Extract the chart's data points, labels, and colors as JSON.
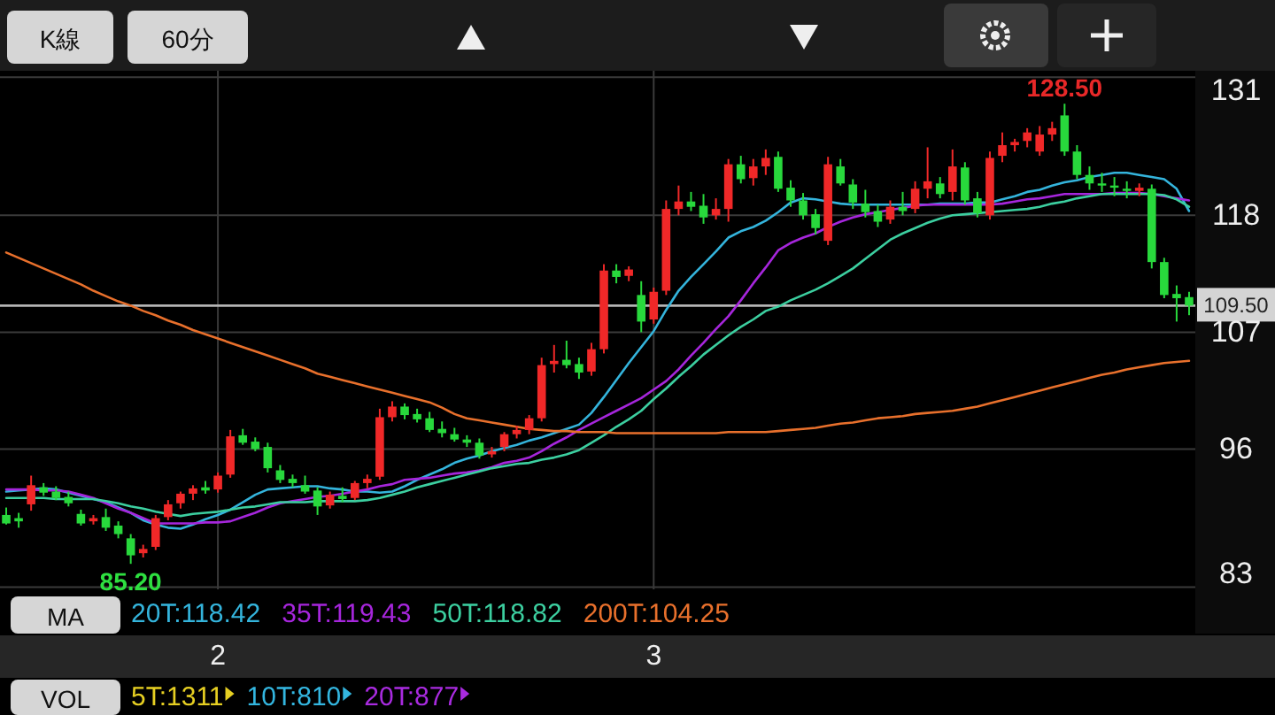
{
  "chart_data": {
    "type": "candlestick",
    "categories": [
      null,
      null,
      null,
      null,
      null,
      null,
      null,
      null,
      null,
      null,
      null,
      null,
      null,
      null,
      null,
      null,
      null,
      "2",
      null,
      null,
      null,
      null,
      null,
      null,
      null,
      null,
      null,
      null,
      null,
      null,
      null,
      null,
      null,
      null,
      null,
      null,
      null,
      null,
      null,
      null,
      null,
      null,
      null,
      null,
      null,
      null,
      null,
      null,
      null,
      null,
      null,
      null,
      "3",
      null,
      null,
      null,
      null,
      null,
      null,
      null,
      null,
      null,
      null,
      null,
      null,
      null,
      null,
      null,
      null,
      null,
      null,
      null,
      null,
      null,
      null,
      null,
      null,
      null,
      null,
      null,
      null,
      null,
      null,
      null,
      null,
      null,
      null,
      null,
      null,
      null,
      null,
      null,
      null,
      null,
      null,
      null
    ],
    "ohlc": [
      [
        89.8,
        90.5,
        88.9,
        89.0
      ],
      [
        89.5,
        90.0,
        88.6,
        89.2
      ],
      [
        90.8,
        93.5,
        90.2,
        92.6
      ],
      [
        92.4,
        92.8,
        91.6,
        91.9
      ],
      [
        92.0,
        92.5,
        91.2,
        91.4
      ],
      [
        91.5,
        92.0,
        90.6,
        90.9
      ],
      [
        89.9,
        90.3,
        88.8,
        89.0
      ],
      [
        89.2,
        89.8,
        88.9,
        89.5
      ],
      [
        89.6,
        90.4,
        88.3,
        88.6
      ],
      [
        88.8,
        89.2,
        87.6,
        88.0
      ],
      [
        87.6,
        88.0,
        85.2,
        86.0
      ],
      [
        86.2,
        87.0,
        85.8,
        86.6
      ],
      [
        86.8,
        89.8,
        86.5,
        89.5
      ],
      [
        89.6,
        91.2,
        89.3,
        90.8
      ],
      [
        90.9,
        92.0,
        90.4,
        91.8
      ],
      [
        91.8,
        92.6,
        91.2,
        92.3
      ],
      [
        92.4,
        93.0,
        91.8,
        92.1
      ],
      [
        92.2,
        93.8,
        91.9,
        93.5
      ],
      [
        93.6,
        97.8,
        93.3,
        97.2
      ],
      [
        97.3,
        97.9,
        96.4,
        96.6
      ],
      [
        96.7,
        97.1,
        95.8,
        96.0
      ],
      [
        96.2,
        96.6,
        93.8,
        94.2
      ],
      [
        94.0,
        94.5,
        92.8,
        93.1
      ],
      [
        93.2,
        93.6,
        92.4,
        92.8
      ],
      [
        92.6,
        93.5,
        91.8,
        92.0
      ],
      [
        92.1,
        92.4,
        89.8,
        90.6
      ],
      [
        90.7,
        92.0,
        90.4,
        91.7
      ],
      [
        91.6,
        92.4,
        91.0,
        91.3
      ],
      [
        91.4,
        93.0,
        91.2,
        92.8
      ],
      [
        92.8,
        93.6,
        92.3,
        93.2
      ],
      [
        93.4,
        99.8,
        93.1,
        99.0
      ],
      [
        99.0,
        100.5,
        98.6,
        100.0
      ],
      [
        100.0,
        100.3,
        98.8,
        99.2
      ],
      [
        99.3,
        99.8,
        98.5,
        98.8
      ],
      [
        98.9,
        99.5,
        97.6,
        97.8
      ],
      [
        97.9,
        98.6,
        97.1,
        97.5
      ],
      [
        97.4,
        98.0,
        96.7,
        96.9
      ],
      [
        96.9,
        97.3,
        96.2,
        96.6
      ],
      [
        96.6,
        97.0,
        95.1,
        95.4
      ],
      [
        95.5,
        96.2,
        95.2,
        95.8
      ],
      [
        96.2,
        97.6,
        95.8,
        97.4
      ],
      [
        97.4,
        98.2,
        97.0,
        97.8
      ],
      [
        97.8,
        99.2,
        97.4,
        98.9
      ],
      [
        98.9,
        104.6,
        98.6,
        103.9
      ],
      [
        104.0,
        105.8,
        103.2,
        104.3
      ],
      [
        104.4,
        106.2,
        103.6,
        103.9
      ],
      [
        104.0,
        104.6,
        102.6,
        103.2
      ],
      [
        103.3,
        106.0,
        102.9,
        105.4
      ],
      [
        105.4,
        113.4,
        105.0,
        112.8
      ],
      [
        112.8,
        113.4,
        111.6,
        112.2
      ],
      [
        112.3,
        113.2,
        111.8,
        112.9
      ],
      [
        110.5,
        111.8,
        107.0,
        108.0
      ],
      [
        108.2,
        111.2,
        107.8,
        110.8
      ],
      [
        110.9,
        119.4,
        110.5,
        118.6
      ],
      [
        118.6,
        120.8,
        118.0,
        119.3
      ],
      [
        119.3,
        120.2,
        118.4,
        118.8
      ],
      [
        118.9,
        120.0,
        117.2,
        117.8
      ],
      [
        118.0,
        119.6,
        117.6,
        118.6
      ],
      [
        118.6,
        123.3,
        117.4,
        122.8
      ],
      [
        122.8,
        123.6,
        121.0,
        121.4
      ],
      [
        121.5,
        123.3,
        120.8,
        122.6
      ],
      [
        122.6,
        124.2,
        121.8,
        123.4
      ],
      [
        123.5,
        124.0,
        120.2,
        120.5
      ],
      [
        120.6,
        121.3,
        118.8,
        119.4
      ],
      [
        119.4,
        120.1,
        117.6,
        118.0
      ],
      [
        118.1,
        118.6,
        116.2,
        116.8
      ],
      [
        115.6,
        123.5,
        115.2,
        122.8
      ],
      [
        122.6,
        123.3,
        120.8,
        121.0
      ],
      [
        120.9,
        121.4,
        118.6,
        119.2
      ],
      [
        119.1,
        120.4,
        117.8,
        118.3
      ],
      [
        118.4,
        119.0,
        116.9,
        117.4
      ],
      [
        117.6,
        119.4,
        117.2,
        118.8
      ],
      [
        118.8,
        120.2,
        118.0,
        118.4
      ],
      [
        118.6,
        121.2,
        118.2,
        120.5
      ],
      [
        120.5,
        124.4,
        119.6,
        121.2
      ],
      [
        121.0,
        121.6,
        119.6,
        120.0
      ],
      [
        120.2,
        124.2,
        119.4,
        122.6
      ],
      [
        122.5,
        123.0,
        119.0,
        119.4
      ],
      [
        119.6,
        120.2,
        117.8,
        118.2
      ],
      [
        118.0,
        124.0,
        117.6,
        123.4
      ],
      [
        123.6,
        125.8,
        123.0,
        124.6
      ],
      [
        124.6,
        125.2,
        124.0,
        124.9
      ],
      [
        125.0,
        126.2,
        124.4,
        125.8
      ],
      [
        124.0,
        126.4,
        123.6,
        125.6
      ],
      [
        125.6,
        126.8,
        125.0,
        126.2
      ],
      [
        127.4,
        128.5,
        123.6,
        124.0
      ],
      [
        124.0,
        124.6,
        121.4,
        121.8
      ],
      [
        121.8,
        122.6,
        120.4,
        121.0
      ],
      [
        121.0,
        122.0,
        120.2,
        120.8
      ],
      [
        120.8,
        121.6,
        119.8,
        120.6
      ],
      [
        120.5,
        121.2,
        119.6,
        120.3
      ],
      [
        120.3,
        121.0,
        119.8,
        120.6
      ],
      [
        120.5,
        120.9,
        113.0,
        113.6
      ],
      [
        113.6,
        114.0,
        110.2,
        110.5
      ],
      [
        110.6,
        111.4,
        108.0,
        110.2
      ],
      [
        110.3,
        110.8,
        108.6,
        109.5
      ]
    ],
    "colors": [
      "#28d83c",
      "#28d83c",
      "#f02828",
      "#28d83c",
      "#28d83c",
      "#28d83c",
      "#28d83c",
      "#f02828",
      "#28d83c",
      "#28d83c",
      "#28d83c",
      "#f02828",
      "#f02828",
      "#f02828",
      "#f02828",
      "#f02828",
      "#28d83c",
      "#f02828",
      "#f02828",
      "#28d83c",
      "#28d83c",
      "#28d83c",
      "#28d83c",
      "#28d83c",
      "#28d83c",
      "#28d83c",
      "#f02828",
      "#28d83c",
      "#f02828",
      "#f02828",
      "#f02828",
      "#f02828",
      "#28d83c",
      "#28d83c",
      "#28d83c",
      "#28d83c",
      "#28d83c",
      "#28d83c",
      "#28d83c",
      "#f02828",
      "#f02828",
      "#f02828",
      "#f02828",
      "#f02828",
      "#f02828",
      "#28d83c",
      "#28d83c",
      "#f02828",
      "#f02828",
      "#28d83c",
      "#f02828",
      "#28d83c",
      "#f02828",
      "#f02828",
      "#f02828",
      "#28d83c",
      "#28d83c",
      "#f02828",
      "#f02828",
      "#28d83c",
      "#f02828",
      "#f02828",
      "#28d83c",
      "#28d83c",
      "#28d83c",
      "#28d83c",
      "#f02828",
      "#28d83c",
      "#28d83c",
      "#28d83c",
      "#28d83c",
      "#f02828",
      "#28d83c",
      "#f02828",
      "#f02828",
      "#28d83c",
      "#f02828",
      "#28d83c",
      "#28d83c",
      "#f02828",
      "#f02828",
      "#f02828",
      "#f02828",
      "#f02828",
      "#f02828",
      "#28d83c",
      "#28d83c",
      "#28d83c",
      "#28d83c",
      "#28d83c",
      "#28d83c",
      "#f02828",
      "#28d83c",
      "#28d83c",
      "#28d83c",
      "#28d83c"
    ],
    "series": [
      {
        "type": "line",
        "name": "20T:118.42",
        "color": "#34b4dc",
        "values": [
          92.0,
          92.1,
          92.2,
          92.3,
          92.2,
          91.9,
          91.6,
          91.3,
          91.0,
          90.5,
          90.0,
          89.3,
          88.9,
          88.6,
          88.5,
          88.9,
          89.4,
          89.8,
          90.3,
          91.0,
          91.7,
          92.2,
          92.3,
          92.4,
          92.5,
          92.5,
          92.3,
          92.2,
          92.0,
          92.0,
          91.9,
          92.0,
          92.5,
          93.1,
          93.6,
          94.1,
          94.7,
          95.1,
          95.4,
          95.8,
          96.1,
          96.4,
          96.8,
          97.1,
          97.5,
          97.9,
          98.3,
          99.4,
          100.9,
          102.5,
          104.1,
          105.6,
          107.1,
          109.1,
          110.9,
          112.2,
          113.4,
          114.6,
          115.9,
          116.5,
          116.9,
          117.5,
          118.3,
          119.2,
          119.6,
          119.5,
          119.3,
          119.1,
          119.0,
          119.0,
          119.0,
          119.0,
          119.0,
          119.0,
          119.0,
          119.1,
          119.1,
          119.1,
          119.2,
          119.2,
          119.5,
          119.8,
          120.2,
          120.4,
          120.8,
          121.1,
          121.3,
          121.6,
          121.8,
          122.0,
          122.0,
          121.8,
          121.6,
          121.4,
          120.5,
          118.4
        ]
      },
      {
        "type": "line",
        "name": "35T:119.43",
        "color": "#a626dc",
        "values": [
          92.2,
          92.2,
          92.2,
          92.1,
          92.1,
          92.0,
          91.7,
          91.4,
          90.9,
          90.4,
          90.0,
          89.5,
          89.0,
          89.0,
          89.0,
          89.0,
          89.1,
          89.1,
          89.2,
          89.6,
          90.0,
          90.5,
          90.9,
          91.1,
          91.3,
          91.5,
          91.6,
          91.8,
          92.0,
          92.2,
          92.5,
          92.7,
          93.1,
          93.2,
          93.3,
          93.5,
          93.7,
          93.8,
          94.0,
          94.3,
          94.7,
          94.9,
          95.2,
          95.8,
          96.5,
          97.1,
          97.8,
          98.4,
          99.0,
          99.6,
          100.2,
          100.8,
          101.6,
          102.4,
          103.5,
          104.8,
          106.0,
          107.3,
          108.5,
          110.0,
          111.6,
          113.1,
          114.7,
          115.4,
          115.9,
          116.3,
          116.9,
          117.4,
          117.8,
          118.1,
          118.3,
          118.5,
          118.7,
          118.9,
          119.0,
          119.0,
          119.0,
          119.0,
          119.0,
          119.0,
          119.1,
          119.3,
          119.5,
          119.6,
          119.8,
          120.0,
          120.0,
          120.0,
          120.0,
          120.1,
          120.1,
          120.1,
          120.0,
          119.8,
          119.6,
          119.4
        ]
      },
      {
        "type": "line",
        "name": "50T:118.82",
        "color": "#3ccfa0",
        "values": [
          91.4,
          91.4,
          91.4,
          91.4,
          91.3,
          91.3,
          91.3,
          91.3,
          91.1,
          90.9,
          90.6,
          90.4,
          90.1,
          89.9,
          89.7,
          89.9,
          90.0,
          90.1,
          90.3,
          90.5,
          90.6,
          90.8,
          91.0,
          91.0,
          91.0,
          91.1,
          91.1,
          91.1,
          91.1,
          91.2,
          91.4,
          91.7,
          92.0,
          92.4,
          92.7,
          93.0,
          93.3,
          93.6,
          93.9,
          94.2,
          94.4,
          94.6,
          94.7,
          95.0,
          95.2,
          95.5,
          95.9,
          96.6,
          97.3,
          98.1,
          98.8,
          99.6,
          100.7,
          101.7,
          102.8,
          103.8,
          104.9,
          105.8,
          106.7,
          107.5,
          108.2,
          109.0,
          109.4,
          110.0,
          110.5,
          111.0,
          111.6,
          112.3,
          113.0,
          113.9,
          114.8,
          115.7,
          116.3,
          116.8,
          117.3,
          117.7,
          118.0,
          118.1,
          118.2,
          118.3,
          118.4,
          118.5,
          118.6,
          118.8,
          119.1,
          119.3,
          119.6,
          119.8,
          120.0,
          120.0,
          120.0,
          120.0,
          120.0,
          119.9,
          119.5,
          118.8
        ]
      },
      {
        "type": "line",
        "name": "200T:104.25",
        "color": "#e8702c",
        "values": [
          114.5,
          114.0,
          113.5,
          113.0,
          112.5,
          112.0,
          111.5,
          110.9,
          110.4,
          109.9,
          109.5,
          109.0,
          108.6,
          108.1,
          107.7,
          107.2,
          106.8,
          106.4,
          106.0,
          105.6,
          105.2,
          104.8,
          104.4,
          104.0,
          103.6,
          103.1,
          102.8,
          102.5,
          102.2,
          101.9,
          101.6,
          101.3,
          101.0,
          100.7,
          100.4,
          99.9,
          99.3,
          98.9,
          98.7,
          98.5,
          98.3,
          98.1,
          97.9,
          97.8,
          97.7,
          97.7,
          97.6,
          97.6,
          97.6,
          97.5,
          97.5,
          97.5,
          97.5,
          97.5,
          97.5,
          97.5,
          97.5,
          97.5,
          97.6,
          97.6,
          97.6,
          97.6,
          97.7,
          97.8,
          97.9,
          98.0,
          98.2,
          98.4,
          98.5,
          98.7,
          98.9,
          99.0,
          99.1,
          99.3,
          99.4,
          99.5,
          99.6,
          99.8,
          100.0,
          100.3,
          100.6,
          100.9,
          101.2,
          101.5,
          101.8,
          102.1,
          102.4,
          102.7,
          103.0,
          103.2,
          103.5,
          103.7,
          103.9,
          104.1,
          104.2,
          104.3
        ]
      }
    ],
    "ylim": [
      82.8,
      131.6
    ],
    "yticks": [
      131,
      118,
      107,
      96,
      83
    ],
    "grid": true,
    "legend": "bottom",
    "ref_lines": [
      {
        "axis": "y",
        "value": 109.5,
        "label": "109.50",
        "color": "#b4b4b4"
      }
    ],
    "annotations": [
      "K線",
      "60分",
      "MA",
      "VOL",
      "5T:1311",
      "10T:810",
      "20T:877",
      {
        "text": "128.50",
        "y": 128.5
      },
      {
        "text": "85.20",
        "y": 85.2
      }
    ]
  }
}
